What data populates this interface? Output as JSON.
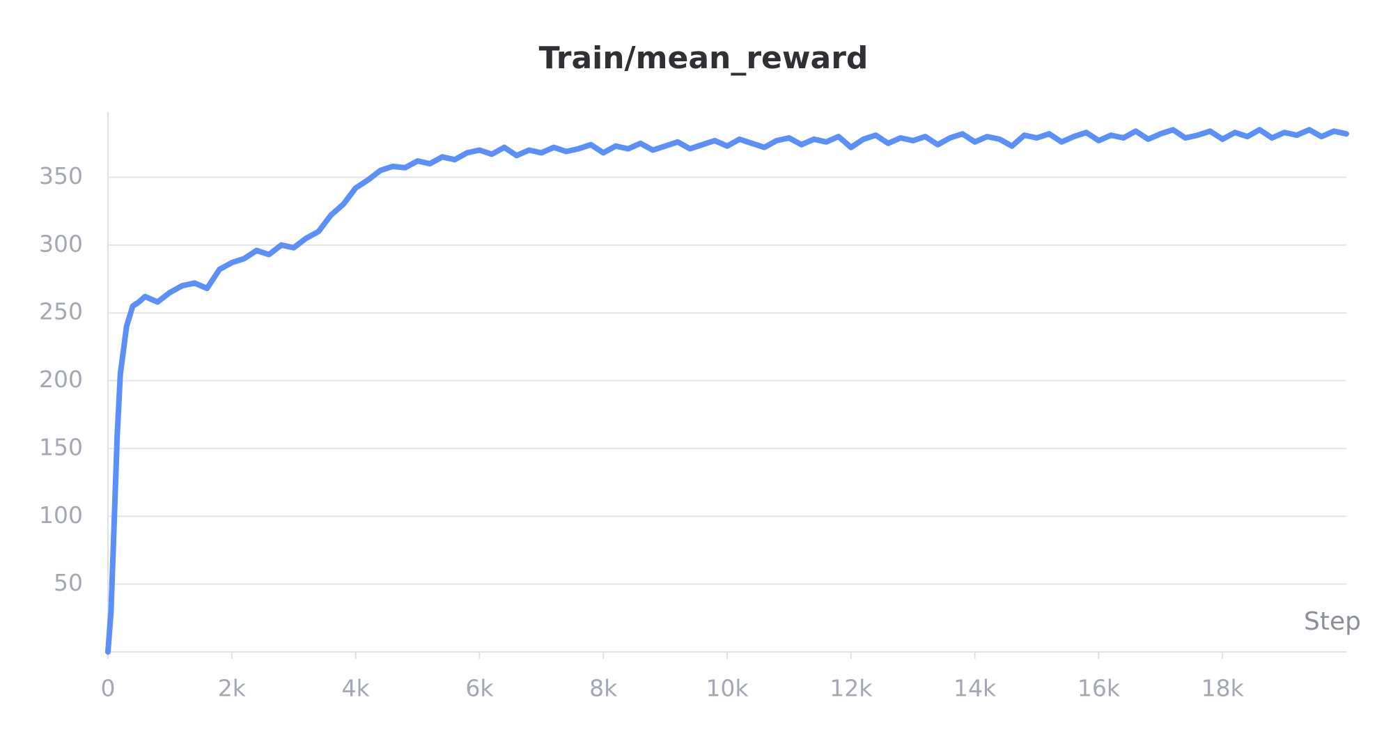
{
  "chart_data": {
    "type": "line",
    "title": "Train/mean_reward",
    "x_label": "Step",
    "x": [
      0,
      50,
      100,
      150,
      200,
      300,
      400,
      500,
      600,
      800,
      1000,
      1200,
      1400,
      1600,
      1800,
      2000,
      2200,
      2400,
      2600,
      2800,
      3000,
      3200,
      3400,
      3600,
      3800,
      4000,
      4200,
      4400,
      4600,
      4800,
      5000,
      5200,
      5400,
      5600,
      5800,
      6000,
      6200,
      6400,
      6600,
      6800,
      7000,
      7200,
      7400,
      7600,
      7800,
      8000,
      8200,
      8400,
      8600,
      8800,
      9000,
      9200,
      9400,
      9600,
      9800,
      10000,
      10200,
      10400,
      10600,
      10800,
      11000,
      11200,
      11400,
      11600,
      11800,
      12000,
      12200,
      12400,
      12600,
      12800,
      13000,
      13200,
      13400,
      13600,
      13800,
      14000,
      14200,
      14400,
      14600,
      14800,
      15000,
      15200,
      15400,
      15600,
      15800,
      16000,
      16200,
      16400,
      16600,
      16800,
      17000,
      17200,
      17400,
      17600,
      17800,
      18000,
      18200,
      18400,
      18600,
      18800,
      19000,
      19200,
      19400,
      19600,
      19800,
      20000
    ],
    "series": [
      {
        "name": "mean_reward",
        "color": "#5b8ff9",
        "values": [
          0,
          30,
          95,
          160,
          205,
          240,
          255,
          258,
          262,
          258,
          265,
          270,
          272,
          268,
          282,
          287,
          290,
          296,
          293,
          300,
          298,
          305,
          310,
          322,
          330,
          342,
          348,
          355,
          358,
          357,
          362,
          360,
          365,
          363,
          368,
          370,
          367,
          372,
          366,
          370,
          368,
          372,
          369,
          371,
          374,
          368,
          373,
          371,
          375,
          370,
          373,
          376,
          371,
          374,
          377,
          373,
          378,
          375,
          372,
          377,
          379,
          374,
          378,
          376,
          380,
          372,
          378,
          381,
          375,
          379,
          377,
          380,
          374,
          379,
          382,
          376,
          380,
          378,
          373,
          381,
          379,
          382,
          376,
          380,
          383,
          377,
          381,
          379,
          384,
          378,
          382,
          385,
          379,
          381,
          384,
          378,
          383,
          380,
          385,
          379,
          383,
          381,
          385,
          380,
          384,
          382
        ]
      }
    ],
    "xlim": [
      0,
      20000
    ],
    "ylim": [
      0,
      398
    ],
    "xticks": [
      0,
      {
        "value": 2000,
        "label": "2k"
      },
      {
        "value": 4000,
        "label": "4k"
      },
      {
        "value": 6000,
        "label": "6k"
      },
      {
        "value": 8000,
        "label": "8k"
      },
      {
        "value": 10000,
        "label": "10k"
      },
      {
        "value": 12000,
        "label": "12k"
      },
      {
        "value": 14000,
        "label": "14k"
      },
      {
        "value": 16000,
        "label": "16k"
      },
      {
        "value": 18000,
        "label": "18k"
      }
    ],
    "yticks": [
      50,
      100,
      150,
      200,
      250,
      300,
      350
    ],
    "grid": true
  }
}
